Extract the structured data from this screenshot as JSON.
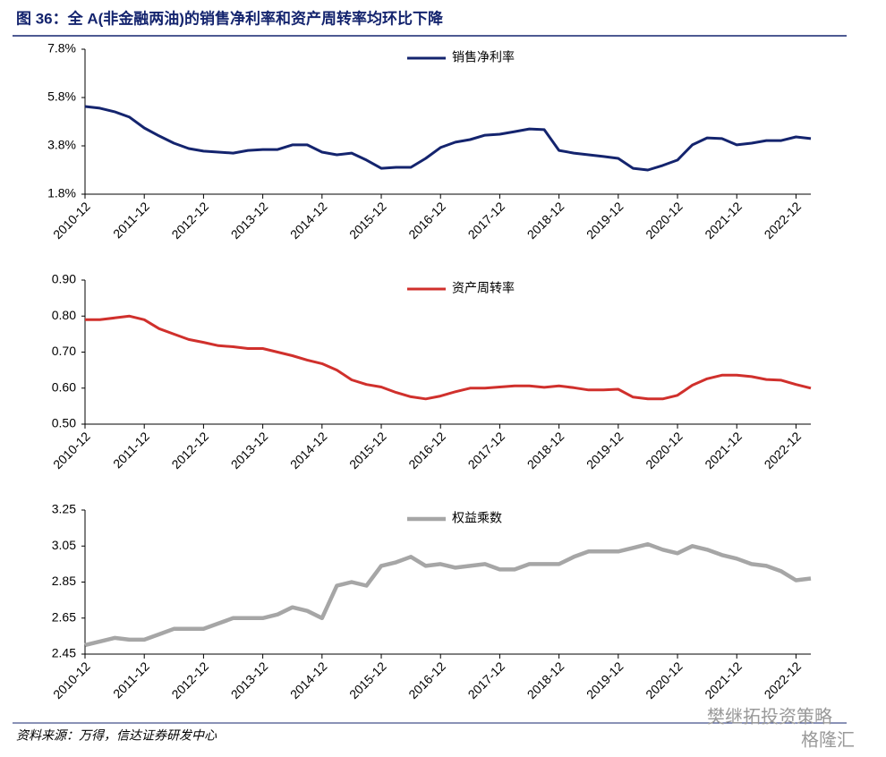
{
  "title": "图 36：全 A(非金融两油)的销售净利率和资产周转率均环比下降",
  "source": "资料来源：万得，信达证券研发中心",
  "watermark": [
    "樊继拓投资策略",
    "格隆汇"
  ],
  "chart_data": [
    {
      "type": "line",
      "categories": [
        "2010-12",
        null,
        null,
        null,
        "2011-12",
        null,
        null,
        null,
        "2012-12",
        null,
        null,
        null,
        "2013-12",
        null,
        null,
        null,
        "2014-12",
        null,
        null,
        null,
        "2015-12",
        null,
        null,
        null,
        "2016-12",
        null,
        null,
        null,
        "2017-12",
        null,
        null,
        null,
        "2018-12",
        null,
        null,
        null,
        "2019-12",
        null,
        null,
        null,
        "2020-12",
        null,
        null,
        null,
        "2021-12",
        null,
        null,
        null,
        "2022-12",
        null
      ],
      "series": [
        {
          "name": "销售净利率",
          "color": "#14246e",
          "values": [
            5.43,
            5.36,
            5.21,
            4.99,
            4.54,
            4.21,
            3.91,
            3.69,
            3.58,
            3.54,
            3.5,
            3.61,
            3.65,
            3.65,
            3.84,
            3.84,
            3.54,
            3.43,
            3.5,
            3.21,
            2.87,
            2.91,
            2.91,
            3.28,
            3.73,
            3.95,
            4.06,
            4.24,
            4.28,
            4.39,
            4.5,
            4.47,
            3.61,
            3.5,
            3.43,
            3.36,
            3.28,
            2.87,
            2.8,
            2.99,
            3.21,
            3.84,
            4.13,
            4.1,
            3.84,
            3.91,
            4.02,
            4.02,
            4.17,
            4.1
          ]
        }
      ],
      "ylim": [
        1.8,
        7.8
      ],
      "yticks": [
        {
          "value": 7.8,
          "label": "7.8%"
        },
        {
          "value": 5.8,
          "label": "5.8%"
        },
        {
          "value": 3.8,
          "label": "3.8%"
        },
        {
          "value": 1.8,
          "label": "1.8%"
        }
      ],
      "legend": "top"
    },
    {
      "type": "line",
      "categories": [
        "2010-12",
        null,
        null,
        null,
        "2011-12",
        null,
        null,
        null,
        "2012-12",
        null,
        null,
        null,
        "2013-12",
        null,
        null,
        null,
        "2014-12",
        null,
        null,
        null,
        "2015-12",
        null,
        null,
        null,
        "2016-12",
        null,
        null,
        null,
        "2017-12",
        null,
        null,
        null,
        "2018-12",
        null,
        null,
        null,
        "2019-12",
        null,
        null,
        null,
        "2020-12",
        null,
        null,
        null,
        "2021-12",
        null,
        null,
        null,
        "2022-12",
        null
      ],
      "series": [
        {
          "name": "资产周转率",
          "color": "#d0302c",
          "values": [
            0.79,
            0.79,
            0.795,
            0.8,
            0.79,
            0.765,
            0.75,
            0.735,
            0.727,
            0.718,
            0.715,
            0.71,
            0.71,
            0.7,
            0.69,
            0.678,
            0.668,
            0.65,
            0.623,
            0.61,
            0.603,
            0.588,
            0.576,
            0.57,
            0.578,
            0.59,
            0.6,
            0.6,
            0.603,
            0.606,
            0.606,
            0.602,
            0.606,
            0.601,
            0.595,
            0.595,
            0.597,
            0.575,
            0.57,
            0.57,
            0.58,
            0.608,
            0.626,
            0.636,
            0.636,
            0.632,
            0.624,
            0.622,
            0.61,
            0.6
          ]
        }
      ],
      "ylim": [
        0.5,
        0.9
      ],
      "yticks": [
        {
          "value": 0.9,
          "label": "0.90"
        },
        {
          "value": 0.8,
          "label": "0.80"
        },
        {
          "value": 0.7,
          "label": "0.70"
        },
        {
          "value": 0.6,
          "label": "0.60"
        },
        {
          "value": 0.5,
          "label": "0.50"
        }
      ],
      "legend": "top"
    },
    {
      "type": "line",
      "categories": [
        "2010-12",
        null,
        null,
        null,
        "2011-12",
        null,
        null,
        null,
        "2012-12",
        null,
        null,
        null,
        "2013-12",
        null,
        null,
        null,
        "2014-12",
        null,
        null,
        null,
        "2015-12",
        null,
        null,
        null,
        "2016-12",
        null,
        null,
        null,
        "2017-12",
        null,
        null,
        null,
        "2018-12",
        null,
        null,
        null,
        "2019-12",
        null,
        null,
        null,
        "2020-12",
        null,
        null,
        null,
        "2021-12",
        null,
        null,
        null,
        "2022-12",
        null
      ],
      "series": [
        {
          "name": "权益乘数",
          "color": "#a6a6a6",
          "values": [
            2.5,
            2.52,
            2.54,
            2.53,
            2.53,
            2.56,
            2.59,
            2.59,
            2.59,
            2.62,
            2.65,
            2.65,
            2.65,
            2.67,
            2.71,
            2.69,
            2.65,
            2.83,
            2.85,
            2.83,
            2.94,
            2.96,
            2.99,
            2.94,
            2.95,
            2.93,
            2.94,
            2.95,
            2.92,
            2.92,
            2.95,
            2.95,
            2.95,
            2.99,
            3.02,
            3.02,
            3.02,
            3.04,
            3.06,
            3.03,
            3.01,
            3.05,
            3.03,
            3,
            2.98,
            2.95,
            2.94,
            2.91,
            2.86,
            2.87
          ]
        }
      ],
      "ylim": [
        2.45,
        3.25
      ],
      "yticks": [
        3.25,
        3.05,
        2.85,
        2.65,
        2.45
      ],
      "legend": "top"
    }
  ]
}
